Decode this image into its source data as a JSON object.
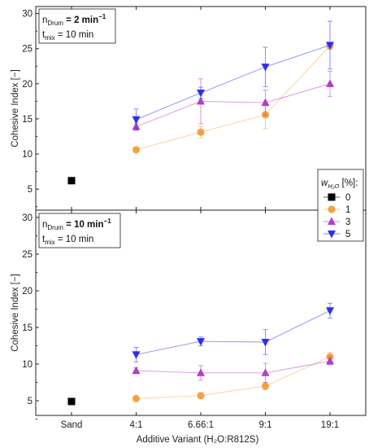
{
  "chart_data": {
    "type": "line",
    "xlabel": "Additive Variant (H₂O:R812S)",
    "categories": [
      "Sand",
      "4:1",
      "6.66:1",
      "9:1",
      "19:1"
    ],
    "legend": {
      "title": "w",
      "title_sub": "H₂O",
      "title_unit": " [%]:",
      "placement": "right, between panels",
      "entries": [
        {
          "label": "0",
          "color": "#000000",
          "marker": "square"
        },
        {
          "label": "1",
          "color": "#f7a040",
          "marker": "circle"
        },
        {
          "label": "3",
          "color": "#b43cc8",
          "marker": "triangle-up"
        },
        {
          "label": "5",
          "color": "#2e2ef0",
          "marker": "triangle-down"
        }
      ]
    },
    "panels": [
      {
        "id": "top",
        "ylabel": "Cohesive Index [−]",
        "ylim": [
          2,
          31
        ],
        "yticks": [
          "5",
          "10",
          "15",
          "20",
          "25",
          "30"
        ],
        "annotation": {
          "n_prefix": "n",
          "n_sub": "Drum",
          "n_value": " = 2 min",
          "n_exp": "−1",
          "t_prefix": "t",
          "t_sub": "mix",
          "t_value": " = 10 min"
        },
        "series": [
          {
            "name": "0",
            "color": "#000000",
            "marker": "square",
            "points": [
              {
                "x": "Sand",
                "y": 6.2,
                "err": 0
              }
            ]
          },
          {
            "name": "1",
            "color": "#f7a040",
            "marker": "circle",
            "points": [
              {
                "x": "4:1",
                "y": 10.6,
                "err": 0
              },
              {
                "x": "6.66:1",
                "y": 13.1,
                "err": 0.8
              },
              {
                "x": "9:1",
                "y": 15.6,
                "err": 2.0
              },
              {
                "x": "19:1",
                "y": 25.4,
                "err": 0.5
              }
            ]
          },
          {
            "name": "3",
            "color": "#b43cc8",
            "marker": "triangle-up",
            "points": [
              {
                "x": "4:1",
                "y": 13.9,
                "err": 0.5
              },
              {
                "x": "6.66:1",
                "y": 17.5,
                "err": 3.2
              },
              {
                "x": "9:1",
                "y": 17.3,
                "err": 1.8
              },
              {
                "x": "19:1",
                "y": 20.0,
                "err": 1.8
              }
            ]
          },
          {
            "name": "5",
            "color": "#2e2ef0",
            "marker": "triangle-down",
            "points": [
              {
                "x": "4:1",
                "y": 14.9,
                "err": 1.5
              },
              {
                "x": "6.66:1",
                "y": 18.7,
                "err": 0.8
              },
              {
                "x": "9:1",
                "y": 22.4,
                "err": 2.8
              },
              {
                "x": "19:1",
                "y": 25.5,
                "err": 3.4
              }
            ]
          }
        ]
      },
      {
        "id": "bottom",
        "ylabel": "Cohesive Index [−]",
        "ylim": [
          3,
          31
        ],
        "yticks": [
          "5",
          "10",
          "15",
          "20",
          "25",
          "30"
        ],
        "annotation": {
          "n_prefix": "n",
          "n_sub": "Drum",
          "n_value": " = 10 min",
          "n_exp": "−1",
          "t_prefix": "t",
          "t_sub": "mix",
          "t_value": " = 10 min"
        },
        "series": [
          {
            "name": "0",
            "color": "#000000",
            "marker": "square",
            "points": [
              {
                "x": "Sand",
                "y": 4.9,
                "err": 0
              }
            ]
          },
          {
            "name": "1",
            "color": "#f7a040",
            "marker": "circle",
            "points": [
              {
                "x": "4:1",
                "y": 5.3,
                "err": 0
              },
              {
                "x": "6.66:1",
                "y": 5.7,
                "err": 0.4
              },
              {
                "x": "9:1",
                "y": 7.0,
                "err": 0.5
              },
              {
                "x": "19:1",
                "y": 11.0,
                "err": 0.6
              }
            ]
          },
          {
            "name": "3",
            "color": "#b43cc8",
            "marker": "triangle-up",
            "points": [
              {
                "x": "4:1",
                "y": 9.1,
                "err": 0.4
              },
              {
                "x": "6.66:1",
                "y": 8.8,
                "err": 1.0
              },
              {
                "x": "9:1",
                "y": 8.8,
                "err": 1.3
              },
              {
                "x": "19:1",
                "y": 10.4,
                "err": 0.5
              }
            ]
          },
          {
            "name": "5",
            "color": "#2e2ef0",
            "marker": "triangle-down",
            "points": [
              {
                "x": "4:1",
                "y": 11.3,
                "err": 1.0
              },
              {
                "x": "6.66:1",
                "y": 13.1,
                "err": 0.6
              },
              {
                "x": "9:1",
                "y": 13.0,
                "err": 1.7
              },
              {
                "x": "19:1",
                "y": 17.3,
                "err": 1.0
              }
            ]
          }
        ]
      }
    ]
  }
}
